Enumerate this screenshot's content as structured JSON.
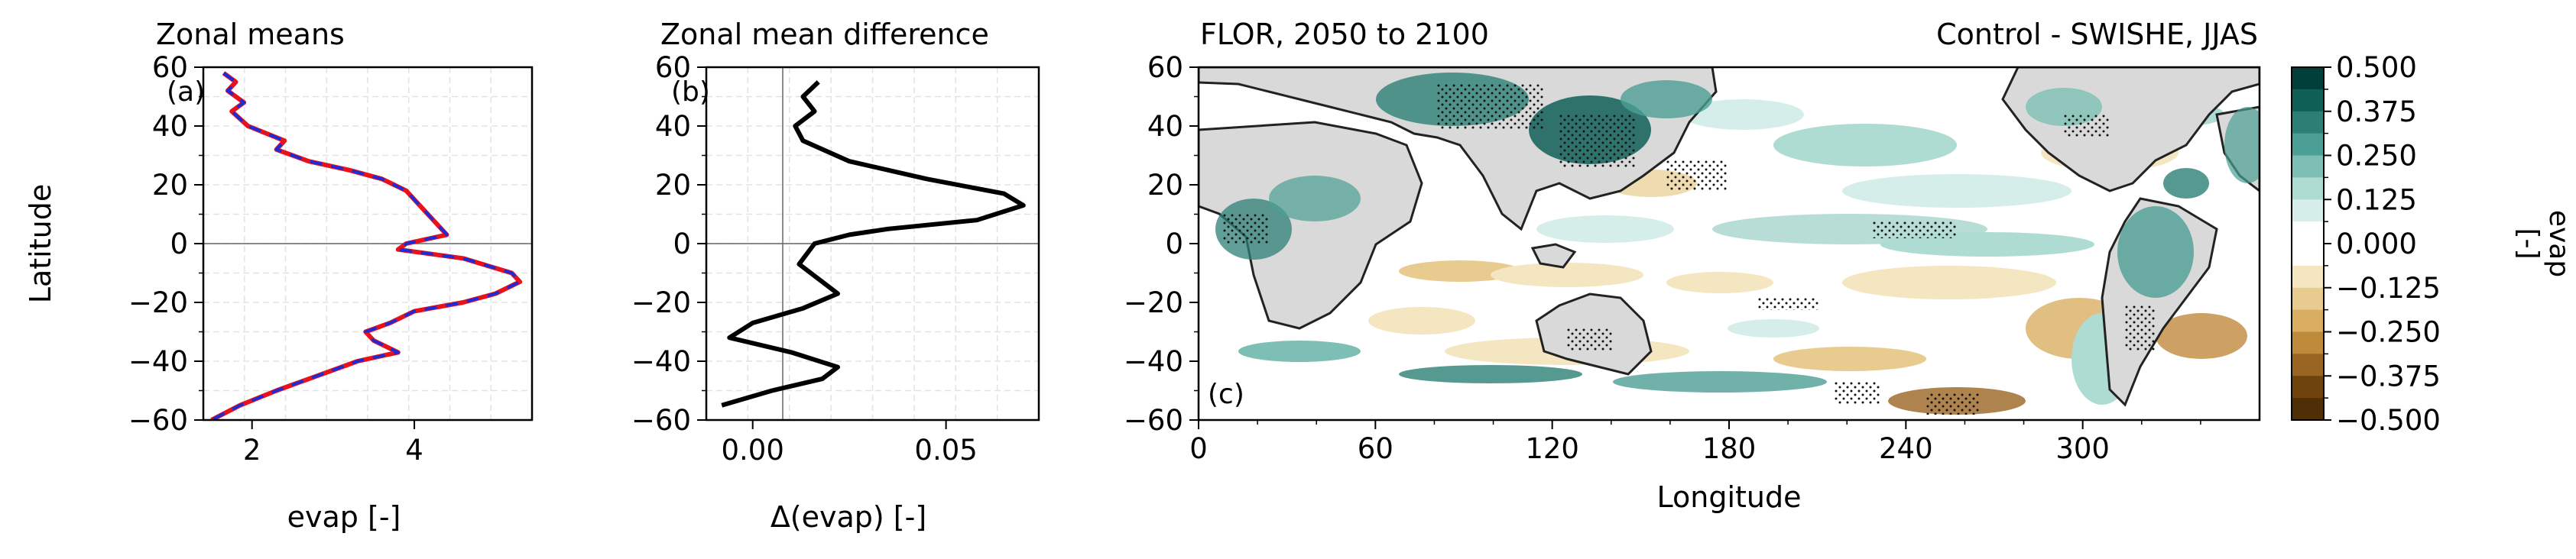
{
  "chart_data": [
    {
      "type": "line",
      "panel_label": "(a)",
      "title": "Zonal means",
      "xlabel": "evap [-]",
      "ylabel": "Latitude",
      "xlim": [
        1.4,
        5.45
      ],
      "ylim": [
        -60,
        60
      ],
      "xticks": [
        2,
        4
      ],
      "yticks": [
        -60,
        -40,
        -20,
        0,
        20,
        40,
        60
      ],
      "grid": true,
      "series": [
        {
          "color": "#e8121c",
          "style": "solid",
          "x": [
            1.65,
            1.8,
            1.7,
            1.9,
            1.75,
            1.95,
            2.4,
            2.3,
            2.7,
            3.2,
            3.6,
            3.9,
            4.0,
            4.4,
            3.9,
            3.8,
            4.6,
            5.2,
            5.3,
            5.0,
            4.6,
            4.0,
            3.7,
            3.4,
            3.5,
            3.8,
            3.3,
            2.8,
            2.3,
            1.85,
            1.5
          ],
          "y": [
            58,
            55,
            52,
            48,
            45,
            40,
            35,
            32,
            28,
            25,
            22,
            18,
            15,
            3,
            0,
            -2,
            -5,
            -10,
            -13,
            -17,
            -20,
            -23,
            -27,
            -30,
            -33,
            -37,
            -40,
            -45,
            -50,
            -55,
            -60
          ]
        },
        {
          "color": "#1f2bd4",
          "style": "dashed",
          "x": [
            1.65,
            1.8,
            1.7,
            1.9,
            1.75,
            1.95,
            2.4,
            2.3,
            2.7,
            3.2,
            3.6,
            3.9,
            4.0,
            4.4,
            3.9,
            3.8,
            4.6,
            5.2,
            5.3,
            5.0,
            4.6,
            4.0,
            3.7,
            3.4,
            3.5,
            3.8,
            3.3,
            2.8,
            2.3,
            1.85,
            1.5
          ],
          "y": [
            58,
            55,
            52,
            48,
            45,
            40,
            35,
            32,
            28,
            25,
            22,
            18,
            15,
            3,
            0,
            -2,
            -5,
            -10,
            -13,
            -17,
            -20,
            -23,
            -27,
            -30,
            -33,
            -37,
            -40,
            -45,
            -50,
            -55,
            -60
          ]
        }
      ]
    },
    {
      "type": "line",
      "panel_label": "(b)",
      "title": "Zonal mean difference",
      "xlabel": "Δ(evap) [-]",
      "xlim": [
        -0.012,
        0.074
      ],
      "ylim": [
        -60,
        60
      ],
      "xticks_labels": [
        "0.00",
        "0.05"
      ],
      "xticks": [
        0.0,
        0.05
      ],
      "yticks": [
        -60,
        -40,
        -20,
        0,
        20,
        40,
        60
      ],
      "grid": true,
      "series": [
        {
          "color": "#000000",
          "style": "solid",
          "x": [
            0.017,
            0.013,
            0.016,
            0.011,
            0.013,
            0.025,
            0.045,
            0.065,
            0.07,
            0.058,
            0.035,
            0.025,
            0.016,
            0.012,
            0.018,
            0.022,
            0.013,
            0.0,
            -0.006,
            0.01,
            0.022,
            0.018,
            0.005,
            -0.008
          ],
          "y": [
            55,
            50,
            45,
            40,
            35,
            28,
            22,
            17,
            13,
            8,
            5,
            3,
            0,
            -7,
            -13,
            -17,
            -22,
            -27,
            -32,
            -37,
            -42,
            -46,
            -50,
            -55
          ]
        }
      ]
    },
    {
      "type": "heatmap",
      "panel_label": "(c)",
      "title": "FLOR, 2050 to 2100",
      "title_right": "Control - SWISHE, JJAS",
      "xlabel": "Longitude",
      "xlim": [
        0,
        360
      ],
      "ylim": [
        -60,
        60
      ],
      "xticks": [
        0,
        60,
        120,
        180,
        240,
        300
      ],
      "yticks": [
        -60,
        -40,
        -20,
        0,
        20,
        40,
        60
      ],
      "colorbar": {
        "label": "evap\n[-]",
        "ticks": [
          "0.500",
          "0.375",
          "0.250",
          "0.125",
          "0.000",
          "−0.125",
          "−0.250",
          "−0.375",
          "−0.500"
        ],
        "range": [
          -0.5,
          0.5
        ],
        "colors_top_to_bottom": [
          "#01403a",
          "#0f5f57",
          "#2c7f75",
          "#4c9f94",
          "#7dbfb4",
          "#aedcd3",
          "#d5eeea",
          "#ffffff",
          "#ffffff",
          "#f5e6c2",
          "#e8cc8f",
          "#d9ae62",
          "#c08a3d",
          "#9a6422",
          "#6e440c",
          "#4f2f05"
        ]
      }
    }
  ]
}
